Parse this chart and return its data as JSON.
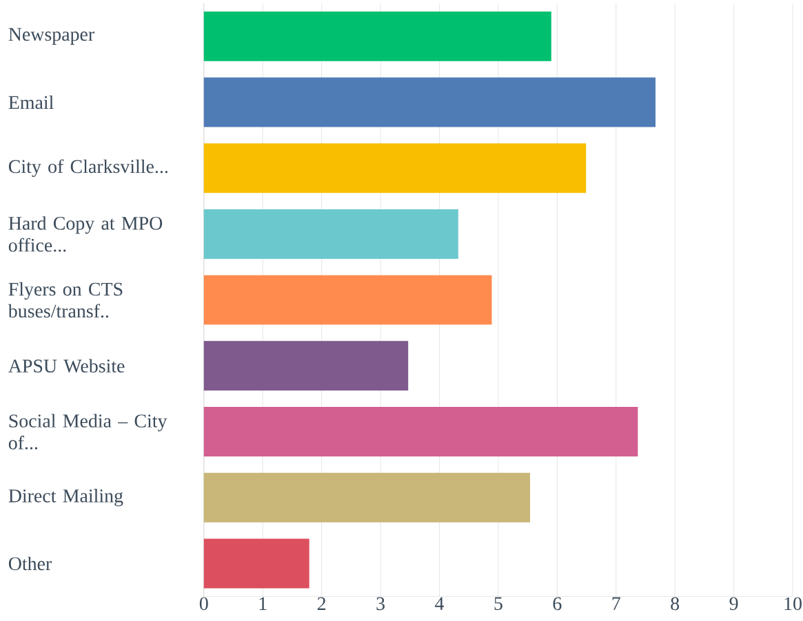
{
  "chart_data": {
    "type": "bar",
    "orientation": "horizontal",
    "categories": [
      "Newspaper",
      "Email",
      "City of Clarksville...",
      "Hard Copy at MPO office...",
      "Flyers on CTS buses/transf..",
      "APSU Website",
      "Social Media – City of...",
      "Direct Mailing",
      "Other"
    ],
    "values": [
      5.9,
      7.67,
      6.49,
      4.32,
      4.89,
      3.47,
      7.37,
      5.54,
      1.79
    ],
    "colors": [
      "#00bf6f",
      "#507cb6",
      "#f9be00",
      "#6bc8cd",
      "#ff8b4f",
      "#7f5a8d",
      "#d25f90",
      "#c8b778",
      "#dc4f5e"
    ],
    "xlim": [
      0,
      10
    ],
    "xticks": [
      0,
      1,
      2,
      3,
      4,
      5,
      6,
      7,
      8,
      9,
      10
    ],
    "grid": "x"
  }
}
